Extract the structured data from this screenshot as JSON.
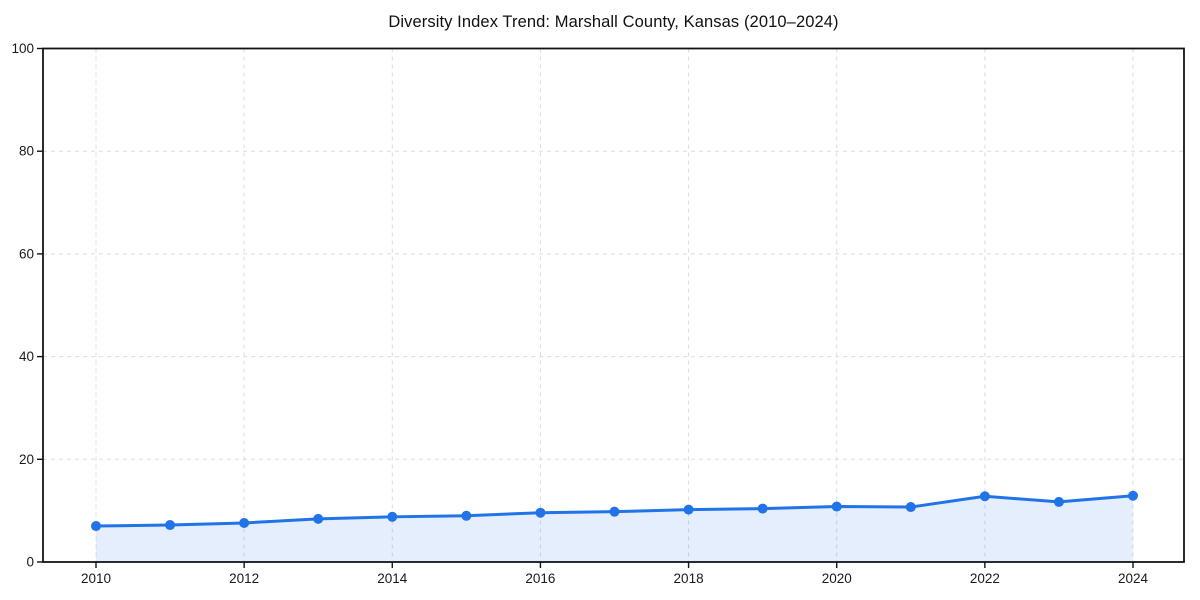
{
  "chart_data": {
    "type": "line",
    "title": "Diversity Index Trend: Marshall County, Kansas (2010–2024)",
    "x": [
      2010,
      2011,
      2012,
      2013,
      2014,
      2015,
      2016,
      2017,
      2018,
      2019,
      2020,
      2021,
      2022,
      2023,
      2024
    ],
    "series": [
      {
        "name": "Diversity Index",
        "values": [
          7.0,
          7.2,
          7.6,
          8.4,
          8.8,
          9.0,
          9.6,
          9.8,
          10.2,
          10.4,
          10.8,
          10.7,
          12.8,
          11.7,
          12.9
        ]
      }
    ],
    "xlabel": "",
    "ylabel": "",
    "xlim": [
      2010,
      2024
    ],
    "ylim": [
      0,
      100
    ],
    "xticks": [
      2010,
      2012,
      2014,
      2016,
      2018,
      2020,
      2022,
      2024
    ],
    "yticks": [
      0,
      20,
      40,
      60,
      80,
      100
    ],
    "grid": "dashed",
    "legend": "none",
    "marker": "circle",
    "area_fill": true,
    "style": {
      "line_color": "#2173e8",
      "marker_color": "#2173e8",
      "fill_color": "#2173e8",
      "fill_opacity": 0.12,
      "grid_color": "#dcdcdc",
      "spine_color": "#141414",
      "tick_label_color": "#1a1a1a",
      "title_color": "#111111",
      "background": "#ffffff"
    }
  }
}
